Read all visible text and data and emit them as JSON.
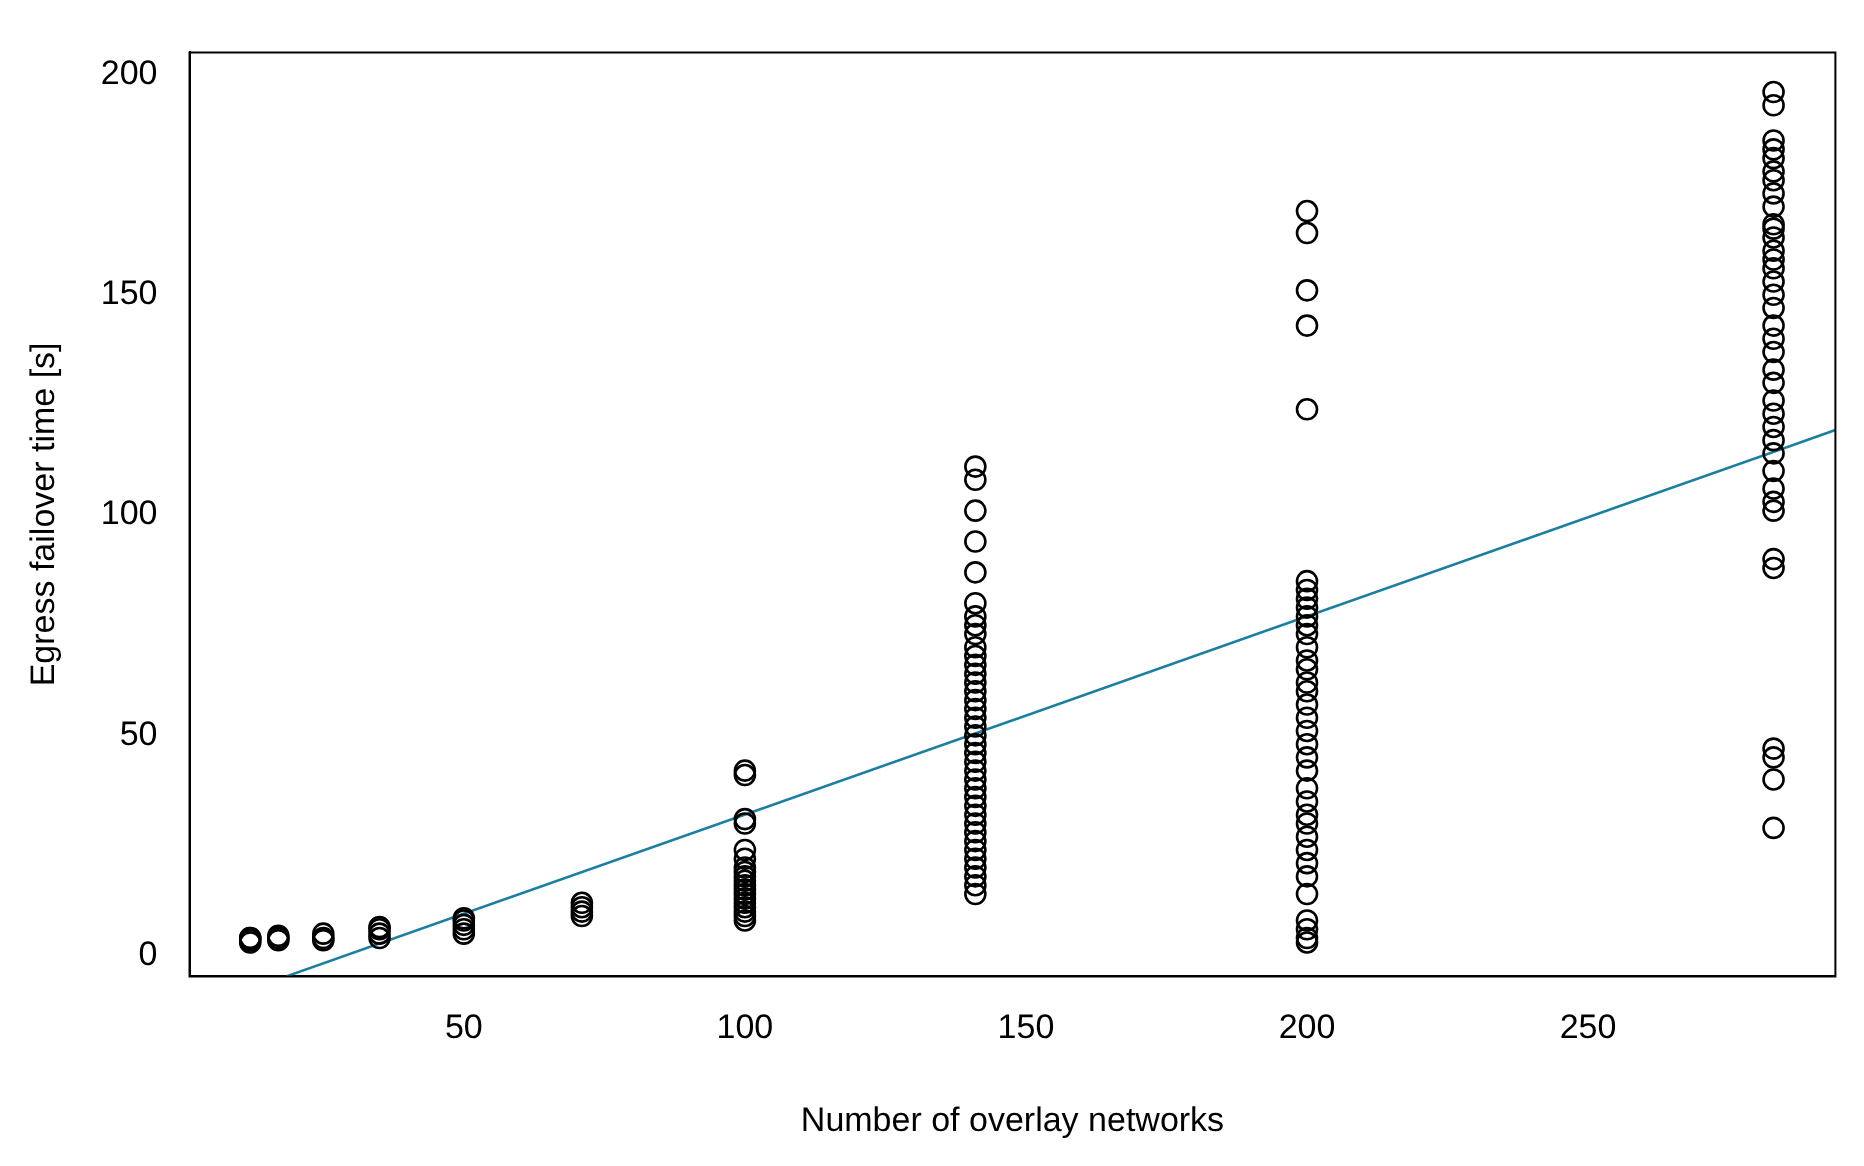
{
  "chart_data": {
    "type": "scatter",
    "xlabel": "Number of overlay networks",
    "ylabel": "Egress failover time [s]",
    "xlim": [
      1.2,
      294
    ],
    "ylim": [
      -4.7,
      205
    ],
    "xticks": [
      50,
      100,
      150,
      200,
      250
    ],
    "yticks": [
      0,
      50,
      100,
      150,
      200
    ],
    "grid": false,
    "legend": false,
    "marker": "circle",
    "series": [
      {
        "type": "scatter",
        "color": "#000000",
        "x": [
          12,
          12,
          12,
          12,
          17,
          17,
          17,
          25,
          25,
          25,
          35,
          35,
          35,
          35,
          50,
          50,
          50,
          50,
          50,
          71,
          71,
          71,
          71,
          100,
          100,
          100,
          100,
          100,
          100,
          100,
          100,
          100,
          100,
          100,
          100,
          100,
          100,
          100,
          100,
          100,
          100,
          100,
          141,
          141,
          141,
          141,
          141,
          141,
          141,
          141,
          141,
          141,
          141,
          141,
          141,
          141,
          141,
          141,
          141,
          141,
          141,
          141,
          141,
          141,
          141,
          141,
          141,
          141,
          141,
          141,
          141,
          141,
          141,
          141,
          141,
          141,
          141,
          141,
          141,
          141,
          200,
          200,
          200,
          200,
          200,
          200,
          200,
          200,
          200,
          200,
          200,
          200,
          200,
          200,
          200,
          200,
          200,
          200,
          200,
          200,
          200,
          200,
          200,
          200,
          200,
          200,
          200,
          200,
          200,
          200,
          200,
          200,
          200,
          200,
          200,
          200,
          283,
          283,
          283,
          283,
          283,
          283,
          283,
          283,
          283,
          283,
          283,
          283,
          283,
          283,
          283,
          283,
          283,
          283,
          283,
          283,
          283,
          283,
          283,
          283,
          283,
          283,
          283,
          283,
          283,
          283,
          283,
          283,
          283,
          283,
          283,
          283,
          283,
          283
        ],
        "values": [
          3,
          3.5,
          4,
          4,
          3.5,
          4,
          4.5,
          3.5,
          4,
          5,
          4,
          5,
          6,
          6.5,
          5,
          6,
          7,
          8,
          8.5,
          9,
          10,
          11,
          12,
          8,
          9,
          10,
          11,
          12,
          13,
          14,
          15,
          16,
          17,
          18,
          19,
          20,
          22,
          24,
          30,
          31,
          41,
          42,
          111,
          108,
          101,
          94,
          87,
          80,
          77,
          75,
          73,
          70,
          68,
          66,
          64,
          62,
          60,
          58,
          56,
          54,
          52,
          50,
          48,
          46,
          44,
          42,
          40,
          38,
          36,
          34,
          32,
          30,
          28,
          26,
          24,
          22,
          20,
          18,
          16,
          14,
          169,
          164,
          151,
          143,
          124,
          85,
          83,
          81,
          79,
          77,
          75,
          73,
          70,
          67,
          65,
          62,
          60,
          57,
          54,
          51,
          48,
          45,
          42,
          38,
          35,
          32,
          30,
          27,
          24,
          21,
          18,
          14,
          8,
          6,
          4,
          3,
          196,
          193,
          185,
          183,
          181,
          178,
          176,
          173,
          170,
          166,
          165,
          163,
          160,
          158,
          156,
          153,
          150,
          147,
          143,
          140,
          137,
          133,
          130,
          126,
          123,
          120,
          117,
          114,
          110,
          106,
          103,
          101,
          90,
          88,
          47,
          45,
          40,
          29
        ]
      },
      {
        "type": "line",
        "color": "#1a7fa0",
        "marker": "none",
        "x": [
          18.4,
          294
        ],
        "values": [
          -4.7,
          119.3
        ]
      }
    ]
  }
}
